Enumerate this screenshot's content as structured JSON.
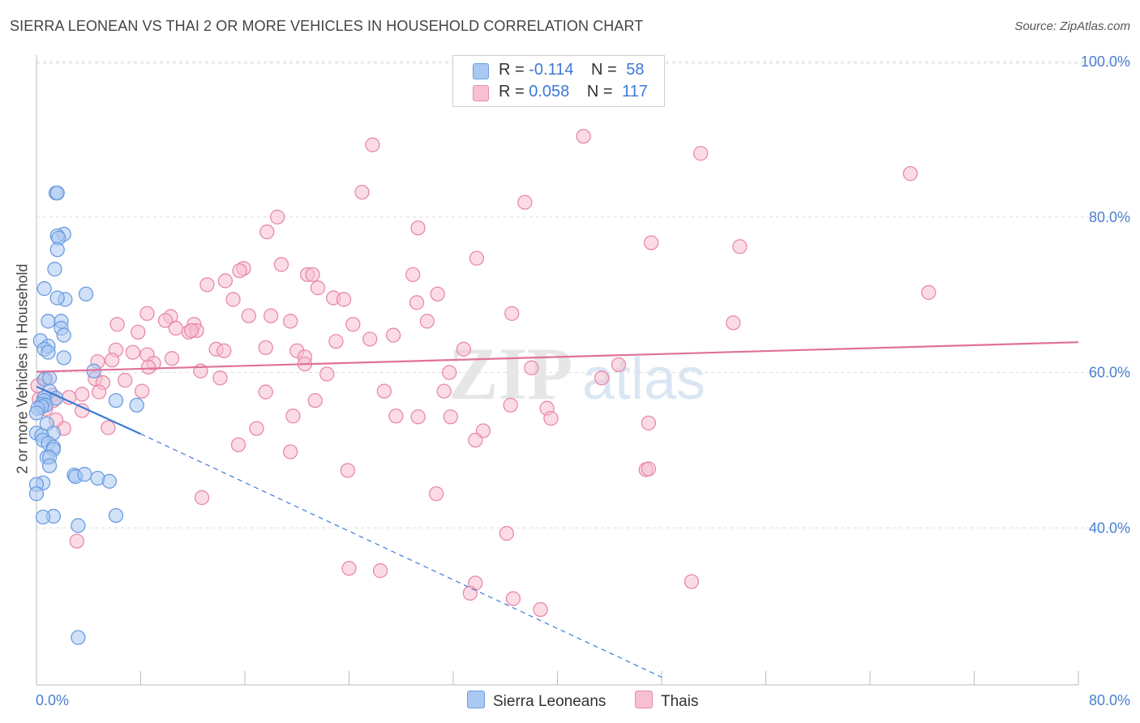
{
  "header": {
    "title": "SIERRA LEONEAN VS THAI 2 OR MORE VEHICLES IN HOUSEHOLD CORRELATION CHART",
    "source": "Source: ZipAtlas.com"
  },
  "legend": {
    "rows": [
      {
        "r_label": "R =",
        "r_value": "-0.114",
        "n_label": "N =",
        "n_value": "58",
        "color": "#aac8f2",
        "border": "#6d9de0"
      },
      {
        "r_label": "R =",
        "r_value": "0.058",
        "n_label": "N =",
        "n_value": "117",
        "color": "#f7c0d0",
        "border": "#e88aa8"
      }
    ]
  },
  "bottom_legend": {
    "items": [
      {
        "label": "Sierra Leoneans",
        "color": "#aac8f2",
        "border": "#6d9de0"
      },
      {
        "label": "Thais",
        "color": "#f7c0d0",
        "border": "#e88aa8"
      }
    ]
  },
  "watermark": {
    "zip": "ZIP",
    "atlas": "atlas"
  },
  "chart_data": {
    "type": "scatter",
    "title": "SIERRA LEONEAN VS THAI 2 OR MORE VEHICLES IN HOUSEHOLD CORRELATION CHART",
    "xlabel": "",
    "ylabel": "2 or more Vehicles in Household",
    "xlim": [
      0,
      80
    ],
    "ylim": [
      20,
      100
    ],
    "x_tick_labels": [
      "0.0%",
      "80.0%"
    ],
    "y_ticks": [
      40,
      60,
      80,
      100
    ],
    "y_tick_labels": [
      "40.0%",
      "60.0%",
      "80.0%",
      "100.0%"
    ],
    "colors": {
      "sierra": "#4a7fd0",
      "thai": "#e0709a",
      "tick": "#4a7fd0"
    },
    "series": [
      {
        "name": "Sierra Leoneans",
        "color": "#aac8f2",
        "edge": "#6d9de0",
        "points": [
          [
            1.5,
            83.3
          ],
          [
            1.6,
            83.3
          ],
          [
            2.1,
            78.0
          ],
          [
            1.6,
            77.8
          ],
          [
            1.7,
            77.5
          ],
          [
            1.6,
            76.0
          ],
          [
            1.4,
            73.5
          ],
          [
            0.6,
            71.0
          ],
          [
            3.8,
            70.3
          ],
          [
            2.2,
            69.6
          ],
          [
            1.6,
            69.8
          ],
          [
            0.9,
            66.8
          ],
          [
            1.9,
            66.8
          ],
          [
            1.9,
            65.9
          ],
          [
            2.1,
            65.0
          ],
          [
            0.3,
            64.3
          ],
          [
            0.9,
            63.6
          ],
          [
            0.6,
            63.2
          ],
          [
            0.9,
            62.8
          ],
          [
            2.1,
            62.1
          ],
          [
            4.4,
            60.4
          ],
          [
            0.6,
            59.3
          ],
          [
            1.0,
            59.5
          ],
          [
            1.0,
            57.8
          ],
          [
            1.5,
            56.9
          ],
          [
            0.6,
            57.0
          ],
          [
            0.6,
            56.6
          ],
          [
            0.4,
            56.1
          ],
          [
            0.7,
            56.0
          ],
          [
            0.4,
            55.8
          ],
          [
            0.1,
            55.6
          ],
          [
            6.1,
            56.6
          ],
          [
            7.7,
            56.0
          ],
          [
            0.8,
            53.6
          ],
          [
            1.3,
            52.4
          ],
          [
            0.0,
            52.4
          ],
          [
            0.4,
            52.1
          ],
          [
            0.5,
            51.5
          ],
          [
            0.9,
            51.1
          ],
          [
            1.3,
            50.6
          ],
          [
            1.3,
            50.3
          ],
          [
            0.8,
            49.3
          ],
          [
            1.0,
            49.3
          ],
          [
            1.0,
            48.2
          ],
          [
            2.9,
            47.0
          ],
          [
            3.0,
            46.8
          ],
          [
            3.7,
            47.1
          ],
          [
            4.7,
            46.6
          ],
          [
            5.6,
            46.2
          ],
          [
            0.5,
            46.0
          ],
          [
            0.0,
            45.8
          ],
          [
            0.0,
            44.6
          ],
          [
            1.3,
            41.7
          ],
          [
            0.5,
            41.6
          ],
          [
            6.1,
            41.8
          ],
          [
            3.2,
            40.5
          ],
          [
            3.2,
            26.1
          ],
          [
            0.0,
            55.0
          ]
        ]
      },
      {
        "name": "Thais",
        "color": "#f7c0d0",
        "edge": "#e88aa8",
        "points": [
          [
            42.0,
            90.6
          ],
          [
            25.8,
            89.5
          ],
          [
            51.0,
            88.4
          ],
          [
            67.1,
            85.8
          ],
          [
            25.0,
            83.4
          ],
          [
            37.5,
            82.1
          ],
          [
            18.5,
            80.2
          ],
          [
            29.3,
            78.8
          ],
          [
            17.7,
            78.3
          ],
          [
            47.2,
            76.9
          ],
          [
            54.0,
            76.4
          ],
          [
            33.8,
            74.9
          ],
          [
            18.8,
            74.1
          ],
          [
            15.9,
            73.6
          ],
          [
            15.6,
            73.3
          ],
          [
            20.8,
            72.8
          ],
          [
            28.9,
            72.8
          ],
          [
            21.2,
            72.8
          ],
          [
            14.5,
            72.0
          ],
          [
            13.1,
            71.5
          ],
          [
            21.6,
            71.1
          ],
          [
            68.5,
            70.5
          ],
          [
            30.8,
            70.3
          ],
          [
            22.8,
            69.8
          ],
          [
            15.1,
            69.6
          ],
          [
            23.6,
            69.6
          ],
          [
            29.2,
            69.2
          ],
          [
            8.5,
            67.8
          ],
          [
            16.3,
            67.5
          ],
          [
            18.0,
            67.5
          ],
          [
            36.5,
            67.8
          ],
          [
            10.3,
            67.4
          ],
          [
            19.5,
            66.8
          ],
          [
            9.9,
            66.9
          ],
          [
            6.2,
            66.4
          ],
          [
            30.0,
            66.8
          ],
          [
            12.1,
            66.4
          ],
          [
            53.5,
            66.6
          ],
          [
            24.3,
            66.4
          ],
          [
            10.7,
            65.9
          ],
          [
            11.7,
            65.4
          ],
          [
            12.3,
            65.6
          ],
          [
            11.9,
            65.6
          ],
          [
            7.8,
            65.4
          ],
          [
            27.4,
            65.0
          ],
          [
            23.0,
            64.2
          ],
          [
            25.6,
            64.5
          ],
          [
            17.6,
            63.4
          ],
          [
            6.1,
            63.1
          ],
          [
            13.8,
            63.2
          ],
          [
            8.5,
            62.5
          ],
          [
            7.4,
            62.8
          ],
          [
            14.4,
            63.0
          ],
          [
            20.0,
            63.0
          ],
          [
            32.8,
            63.2
          ],
          [
            20.6,
            62.2
          ],
          [
            10.4,
            62.0
          ],
          [
            5.8,
            61.8
          ],
          [
            9.0,
            61.4
          ],
          [
            4.7,
            61.6
          ],
          [
            20.6,
            61.3
          ],
          [
            44.7,
            61.2
          ],
          [
            8.6,
            60.9
          ],
          [
            38.0,
            60.8
          ],
          [
            12.6,
            60.4
          ],
          [
            31.7,
            60.2
          ],
          [
            22.3,
            60.0
          ],
          [
            14.1,
            59.5
          ],
          [
            0.7,
            59.4
          ],
          [
            4.5,
            59.4
          ],
          [
            6.8,
            59.2
          ],
          [
            5.1,
            58.9
          ],
          [
            43.4,
            59.5
          ],
          [
            4.8,
            57.7
          ],
          [
            8.1,
            57.8
          ],
          [
            17.6,
            57.7
          ],
          [
            31.3,
            57.8
          ],
          [
            26.7,
            57.8
          ],
          [
            1.2,
            57.3
          ],
          [
            3.5,
            57.4
          ],
          [
            2.5,
            57.0
          ],
          [
            1.3,
            56.6
          ],
          [
            0.2,
            56.8
          ],
          [
            21.4,
            56.6
          ],
          [
            36.4,
            56.0
          ],
          [
            39.2,
            55.6
          ],
          [
            0.7,
            55.5
          ],
          [
            3.5,
            55.3
          ],
          [
            19.7,
            54.6
          ],
          [
            27.6,
            54.6
          ],
          [
            29.3,
            54.5
          ],
          [
            31.8,
            54.5
          ],
          [
            39.5,
            54.3
          ],
          [
            47.0,
            53.7
          ],
          [
            5.5,
            53.1
          ],
          [
            16.9,
            53.0
          ],
          [
            2.1,
            53.0
          ],
          [
            34.3,
            52.7
          ],
          [
            33.7,
            51.5
          ],
          [
            15.5,
            50.9
          ],
          [
            19.5,
            50.0
          ],
          [
            46.8,
            47.7
          ],
          [
            47.0,
            47.8
          ],
          [
            23.9,
            47.6
          ],
          [
            30.7,
            44.6
          ],
          [
            12.7,
            44.1
          ],
          [
            36.1,
            39.5
          ],
          [
            3.1,
            38.5
          ],
          [
            24.0,
            35.0
          ],
          [
            26.4,
            34.7
          ],
          [
            33.7,
            33.1
          ],
          [
            50.3,
            33.3
          ],
          [
            33.3,
            31.8
          ],
          [
            36.6,
            31.1
          ],
          [
            38.7,
            29.7
          ],
          [
            0.1,
            58.5
          ],
          [
            1.5,
            54.1
          ]
        ]
      }
    ],
    "trend_lines": [
      {
        "series": "Sierra Leoneans",
        "solid_from": [
          0.0,
          58.4
        ],
        "solid_to": [
          8.0,
          52.3
        ],
        "dashed_to": [
          48.0,
          21.0
        ],
        "color": "#3d7ad6"
      },
      {
        "series": "Thais",
        "from": [
          0.0,
          60.3
        ],
        "to": [
          80.0,
          64.1
        ],
        "color": "#e0709a"
      }
    ],
    "grid": true
  }
}
